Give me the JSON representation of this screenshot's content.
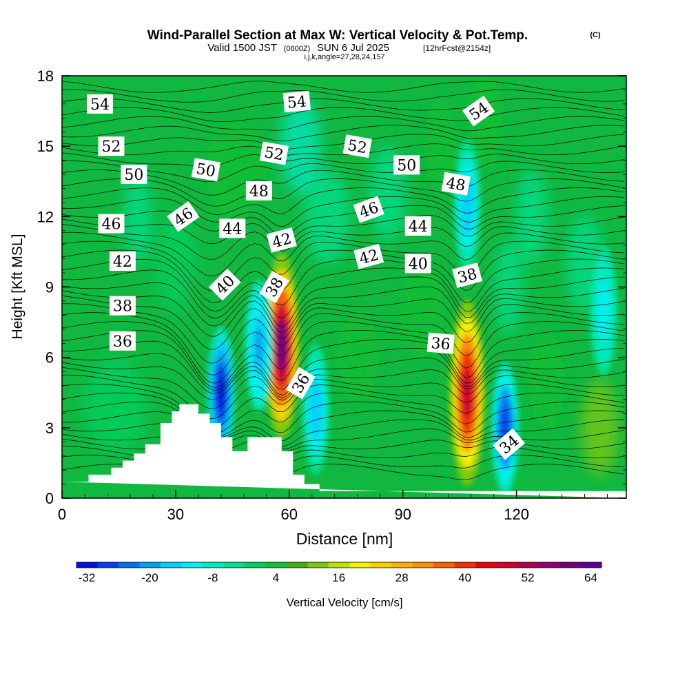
{
  "header": {
    "title": "Wind-Parallel Section at Max W: Vertical Velocity & Pot.Temp.",
    "title_mark": "(C)",
    "sub_a": "Valid 1500 JST",
    "sub_b": "(0600Z)",
    "sub_c": "SUN 6 Jul 2025",
    "sub_d": "[12hrFcst@2154z]",
    "sub_e": "i,j,k,angle=27,28,24,157"
  },
  "chart_data": {
    "type": "heatmap",
    "xlabel": "Distance [nm]",
    "ylabel": "Height [Kft MSL]",
    "xlim": [
      0,
      149
    ],
    "ylim": [
      0,
      18
    ],
    "x_ticks": [
      "0",
      "30",
      "60",
      "90",
      "120"
    ],
    "y_ticks": [
      "0",
      "3",
      "6",
      "9",
      "12",
      "15",
      "18"
    ],
    "colorbar": {
      "label": "Vertical Velocity [cm/s]",
      "tick_labels": [
        "-32",
        "-20",
        "-8",
        "4",
        "16",
        "28",
        "40",
        "52",
        "64"
      ],
      "range": [
        -32,
        68
      ],
      "colors": [
        "#0010e0",
        "#0040f0",
        "#0070f0",
        "#00a0f0",
        "#00d0f8",
        "#00f0f0",
        "#00e8c0",
        "#00e090",
        "#00d060",
        "#10c030",
        "#40b010",
        "#80c810",
        "#c0e000",
        "#f0f000",
        "#f8d000",
        "#f8b000",
        "#f89000",
        "#f86000",
        "#f03000",
        "#e80010",
        "#d00030",
        "#b00050",
        "#900070",
        "#700080",
        "#5a0090"
      ]
    },
    "w_features": [
      {
        "kind": "updraft",
        "x": 58,
        "y": 6.5,
        "peak_cms": 60
      },
      {
        "kind": "updraft",
        "x": 107,
        "y": 4.5,
        "peak_cms": 50
      },
      {
        "kind": "downdraft",
        "x": 42,
        "y": 4.5,
        "peak_cms": -30
      },
      {
        "kind": "downdraft",
        "x": 52,
        "y": 6.5,
        "peak_cms": -18
      },
      {
        "kind": "downdraft",
        "x": 117,
        "y": 3.0,
        "peak_cms": -25
      },
      {
        "kind": "downdraft",
        "x": 67,
        "y": 3.8,
        "peak_cms": -15
      },
      {
        "kind": "downdraft",
        "x": 107,
        "y": 12.5,
        "peak_cms": -15
      },
      {
        "kind": "downdraft",
        "x": 143,
        "y": 8.0,
        "peak_cms": -10
      }
    ],
    "theta_contour_labels": [
      {
        "text": "54",
        "x": 10,
        "y": 16.8,
        "angle": 0
      },
      {
        "text": "52",
        "x": 13,
        "y": 15.0,
        "angle": 0
      },
      {
        "text": "50",
        "x": 19,
        "y": 13.8,
        "angle": 0
      },
      {
        "text": "46",
        "x": 13,
        "y": 11.7,
        "angle": 0
      },
      {
        "text": "42",
        "x": 16,
        "y": 10.1,
        "angle": 0
      },
      {
        "text": "38",
        "x": 16,
        "y": 8.2,
        "angle": 0
      },
      {
        "text": "36",
        "x": 16,
        "y": 6.7,
        "angle": 0
      },
      {
        "text": "50",
        "x": 38,
        "y": 14.0,
        "angle": 10
      },
      {
        "text": "46",
        "x": 32,
        "y": 12.0,
        "angle": -35
      },
      {
        "text": "44",
        "x": 45,
        "y": 11.5,
        "angle": 0
      },
      {
        "text": "40",
        "x": 43,
        "y": 9.1,
        "angle": -45
      },
      {
        "text": "48",
        "x": 52,
        "y": 13.1,
        "angle": 0
      },
      {
        "text": "52",
        "x": 56,
        "y": 14.7,
        "angle": 10
      },
      {
        "text": "54",
        "x": 62,
        "y": 16.9,
        "angle": -5
      },
      {
        "text": "42",
        "x": 58,
        "y": 11.0,
        "angle": -15
      },
      {
        "text": "38",
        "x": 56,
        "y": 9.0,
        "angle": -60
      },
      {
        "text": "36",
        "x": 63,
        "y": 4.9,
        "angle": -60
      },
      {
        "text": "52",
        "x": 78,
        "y": 15.0,
        "angle": 10
      },
      {
        "text": "46",
        "x": 81,
        "y": 12.3,
        "angle": -20
      },
      {
        "text": "42",
        "x": 81,
        "y": 10.3,
        "angle": -15
      },
      {
        "text": "50",
        "x": 91,
        "y": 14.2,
        "angle": 0
      },
      {
        "text": "44",
        "x": 94,
        "y": 11.6,
        "angle": 0
      },
      {
        "text": "40",
        "x": 94,
        "y": 10.0,
        "angle": 0
      },
      {
        "text": "48",
        "x": 104,
        "y": 13.4,
        "angle": 10
      },
      {
        "text": "54",
        "x": 110,
        "y": 16.5,
        "angle": -35
      },
      {
        "text": "38",
        "x": 107,
        "y": 9.5,
        "angle": -15
      },
      {
        "text": "36",
        "x": 100,
        "y": 6.6,
        "angle": 5
      },
      {
        "text": "34",
        "x": 118,
        "y": 2.3,
        "angle": -40
      }
    ],
    "terrain": [
      [
        0,
        0.7
      ],
      [
        7,
        0.7
      ],
      [
        7,
        1.0
      ],
      [
        13,
        1.0
      ],
      [
        13,
        1.3
      ],
      [
        16,
        1.3
      ],
      [
        16,
        1.6
      ],
      [
        19,
        1.6
      ],
      [
        19,
        1.9
      ],
      [
        22,
        1.9
      ],
      [
        22,
        2.3
      ],
      [
        26,
        2.3
      ],
      [
        26,
        3.2
      ],
      [
        29,
        3.2
      ],
      [
        29,
        3.7
      ],
      [
        31,
        3.7
      ],
      [
        31,
        4.0
      ],
      [
        36,
        4.0
      ],
      [
        36,
        3.6
      ],
      [
        39,
        3.6
      ],
      [
        39,
        3.2
      ],
      [
        42,
        3.2
      ],
      [
        42,
        2.6
      ],
      [
        45,
        2.6
      ],
      [
        45,
        2.0
      ],
      [
        49,
        2.0
      ],
      [
        49,
        2.6
      ],
      [
        58,
        2.6
      ],
      [
        58,
        2.0
      ],
      [
        61,
        2.0
      ],
      [
        61,
        1.0
      ],
      [
        64,
        1.0
      ],
      [
        64,
        0.6
      ],
      [
        68,
        0.6
      ],
      [
        68,
        0.3
      ],
      [
        149,
        0.3
      ],
      [
        149,
        0
      ]
    ]
  }
}
